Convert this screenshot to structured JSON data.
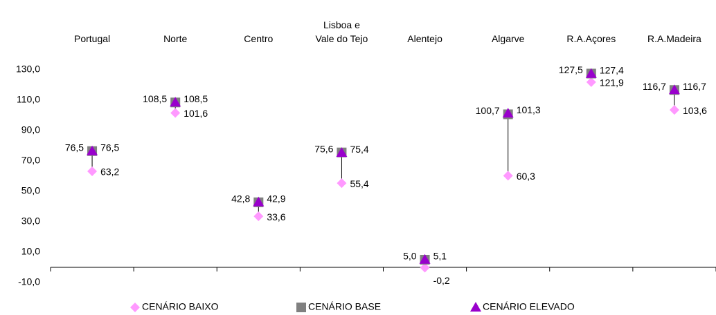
{
  "chart_data": {
    "type": "scatter",
    "categories": [
      "Portugal",
      "Norte",
      "Centro",
      "Lisboa e\nVale do Tejo",
      "Alentejo",
      "Algarve",
      "R.A.Açores",
      "R.A.Madeira"
    ],
    "series": [
      {
        "name": "CENÁRIO BAIXO",
        "color": "#ff99ff",
        "marker": "diamond",
        "values": [
          63.2,
          101.6,
          33.6,
          55.4,
          -0.2,
          60.3,
          121.9,
          103.6
        ],
        "value_labels": [
          "63,2",
          "101,6",
          "33,6",
          "55,4",
          "-0,2",
          "60,3",
          "121,9",
          "103,6"
        ]
      },
      {
        "name": "CENÁRIO BASE",
        "color": "#808080",
        "marker": "square",
        "values": [
          76.5,
          108.5,
          42.8,
          75.6,
          5.0,
          100.7,
          127.5,
          116.7
        ],
        "value_labels": [
          "76,5",
          "108,5",
          "42,8",
          "75,6",
          "5,0",
          "100,7",
          "127,5",
          "116,7"
        ]
      },
      {
        "name": "CENÁRIO ELEVADO",
        "color": "#9900cc",
        "marker": "triangle",
        "values": [
          76.5,
          108.5,
          42.9,
          75.4,
          5.1,
          101.3,
          127.4,
          116.7
        ],
        "value_labels": [
          "76,5",
          "108,5",
          "42,9",
          "75,4",
          "5,1",
          "101,3",
          "127,4",
          "116,7"
        ]
      }
    ],
    "ylim": [
      -10,
      130
    ],
    "yticks": [
      {
        "value": -10,
        "label": "-10,0"
      },
      {
        "value": 10,
        "label": "10,0"
      },
      {
        "value": 30,
        "label": "30,0"
      },
      {
        "value": 50,
        "label": "50,0"
      },
      {
        "value": 70,
        "label": "70,0"
      },
      {
        "value": 90,
        "label": "90,0"
      },
      {
        "value": 110,
        "label": "110,0"
      },
      {
        "value": 130,
        "label": "130,0"
      }
    ],
    "legend": "bottom"
  }
}
